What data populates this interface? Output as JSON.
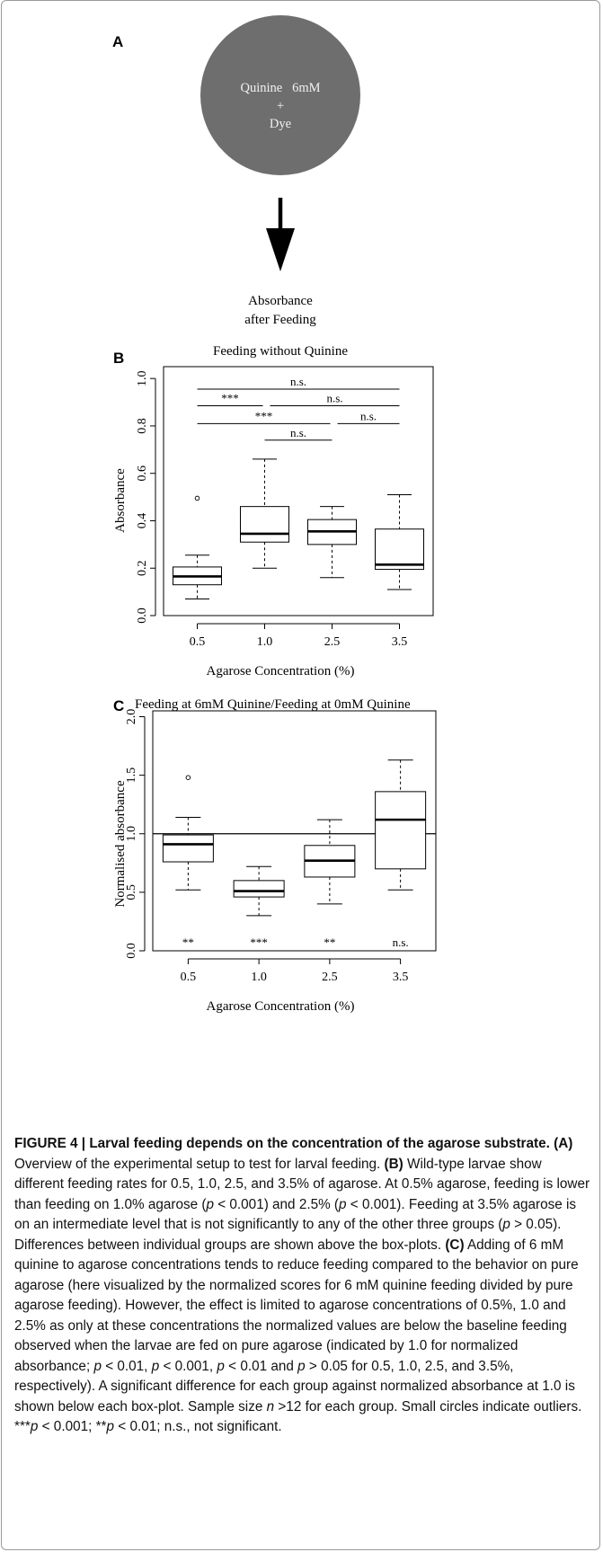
{
  "panelA": {
    "letter": "A",
    "circle_line1": "Quinine   6mM",
    "circle_line2": "+",
    "circle_line3": "Dye",
    "result_line1": "Absorbance",
    "result_line2": "after Feeding",
    "circle_color": "#6e6e6e"
  },
  "panelB": {
    "letter": "B",
    "significance": [
      {
        "label": "n.s.",
        "from": "0.5",
        "to": "3.5",
        "y": 0.955
      },
      {
        "label": "***",
        "from": "0.5",
        "to": "1.0",
        "y": 0.885
      },
      {
        "label": "n.s.",
        "from": "1.0",
        "to": "3.5",
        "y": 0.885
      },
      {
        "label": "***",
        "from": "0.5",
        "to": "2.5",
        "y": 0.81
      },
      {
        "label": "n.s.",
        "from": "2.5",
        "to": "3.5",
        "y": 0.81
      },
      {
        "label": "n.s.",
        "from": "1.0",
        "to": "2.5",
        "y": 0.74
      }
    ]
  },
  "panelC": {
    "letter": "C",
    "significance_below": [
      "**",
      "***",
      "**",
      "n.s."
    ]
  },
  "chart_data": [
    {
      "type": "box",
      "title": "Feeding without Quinine",
      "xlabel": "Agarose Concentration (%)",
      "ylabel": "Absorbance",
      "categories": [
        "0.5",
        "1.0",
        "2.5",
        "3.5"
      ],
      "ylim": [
        0,
        1.05
      ],
      "yticks": [
        "0.0",
        "0.2",
        "0.4",
        "0.6",
        "0.8",
        "1.0"
      ],
      "boxes": [
        {
          "whisker_low": 0.07,
          "q1": 0.13,
          "median": 0.165,
          "q3": 0.205,
          "whisker_high": 0.255,
          "outliers": [
            0.495
          ]
        },
        {
          "whisker_low": 0.2,
          "q1": 0.31,
          "median": 0.345,
          "q3": 0.46,
          "whisker_high": 0.66,
          "outliers": []
        },
        {
          "whisker_low": 0.16,
          "q1": 0.3,
          "median": 0.355,
          "q3": 0.405,
          "whisker_high": 0.46,
          "outliers": []
        },
        {
          "whisker_low": 0.11,
          "q1": 0.195,
          "median": 0.215,
          "q3": 0.365,
          "whisker_high": 0.51,
          "outliers": []
        }
      ]
    },
    {
      "type": "box",
      "title": "Feeding at 6mM Quinine/Feeding at 0mM Quinine",
      "xlabel": "Agarose Concentration (%)",
      "ylabel": "Normalised absorbance",
      "categories": [
        "0.5",
        "1.0",
        "2.5",
        "3.5"
      ],
      "ylim": [
        0,
        2.05
      ],
      "yticks": [
        "0.0",
        "0.5",
        "1.0",
        "1.5",
        "2.0"
      ],
      "reference_line": 1.0,
      "boxes": [
        {
          "whisker_low": 0.52,
          "q1": 0.76,
          "median": 0.91,
          "q3": 0.99,
          "whisker_high": 1.14,
          "outliers": [
            1.48
          ]
        },
        {
          "whisker_low": 0.3,
          "q1": 0.46,
          "median": 0.51,
          "q3": 0.6,
          "whisker_high": 0.72,
          "outliers": []
        },
        {
          "whisker_low": 0.4,
          "q1": 0.63,
          "median": 0.77,
          "q3": 0.9,
          "whisker_high": 1.12,
          "outliers": []
        },
        {
          "whisker_low": 0.52,
          "q1": 0.7,
          "median": 1.12,
          "q3": 1.36,
          "whisker_high": 1.63,
          "outliers": []
        }
      ]
    }
  ],
  "caption": {
    "heading": "FIGURE 4 | Larval feeding depends on the concentration of the agarose substrate.",
    "a_label": "(A)",
    "a_text": " Overview of the experimental setup to test for larval feeding. ",
    "b_label": "(B)",
    "b_text1": " Wild-type larvae show different feeding rates for 0.5, 1.0, 2.5, and 3.5% of agarose. At 0.5% agarose, feeding is lower than feeding on 1.0% agarose (",
    "b_p1": "p",
    "b_text2": " < 0.001) and 2.5% (",
    "b_p2": "p",
    "b_text3": " < 0.001). Feeding at 3.5% agarose is on an intermediate level that is not significantly to any of the other three groups (",
    "b_p3": "p",
    "b_text4": " > 0.05). Differences between individual groups are shown above the box-plots. ",
    "c_label": "(C)",
    "c_text1": " Adding of 6 mM quinine to agarose concentrations tends to reduce feeding compared to the behavior on pure agarose (here visualized by the normalized scores for 6 mM quinine feeding divided by pure agarose feeding). However, the effect is limited to agarose concentrations of 0.5%, 1.0 and 2.5% as only at these concentrations the normalized values are below the baseline feeding observed when the larvae are fed on pure agarose (indicated by 1.0 for normalized absorbance; ",
    "c_p1": "p",
    "c_text2": " < 0.01, ",
    "c_p2": "p",
    "c_text3": " < 0.001, ",
    "c_p3": "p",
    "c_text4": " < 0.01 and ",
    "c_p4": "p",
    "c_text5": " > 0.05 for 0.5, 1.0, 2.5, and 3.5%, respectively). A significant difference for each group against normalized absorbance at 1.0 is shown below each box-plot. Sample size ",
    "c_n": "n",
    "c_text6": " >12 for each group. Small circles indicate outliers. ***",
    "c_p5": "p",
    "c_text7": " < 0.001; **",
    "c_p6": "p",
    "c_text8": " < 0.01; n.s., not significant."
  }
}
